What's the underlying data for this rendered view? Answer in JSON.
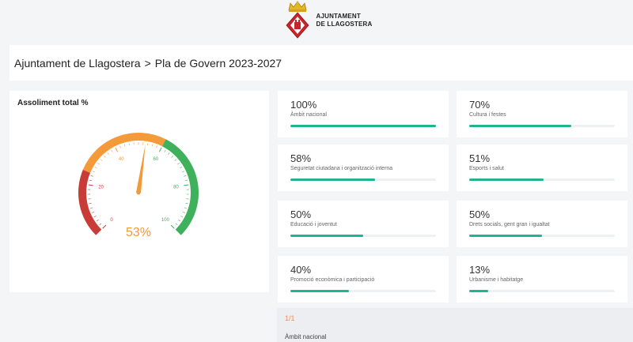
{
  "logo": {
    "line1": "AJUNTAMENT",
    "line2": "DE LLAGOSTERA"
  },
  "breadcrumb": {
    "root": "Ajuntament de Llagostera",
    "separator": ">",
    "current": "Pla de Govern 2023-2027"
  },
  "gauge": {
    "title": "Assoliment total %",
    "value_label": "53%",
    "value": 53,
    "min": 0,
    "max": 100,
    "ticks": [
      "0",
      "20",
      "40",
      "60",
      "80",
      "100"
    ],
    "colors": {
      "low": "#c93b37",
      "mid": "#f39b3a",
      "high": "#3fb15c",
      "needle": "#f29a3a"
    }
  },
  "metrics": [
    {
      "pct": "100%",
      "label": "Àmbit nacional",
      "value": 100
    },
    {
      "pct": "70%",
      "label": "Cultura i festes",
      "value": 70
    },
    {
      "pct": "58%",
      "label": "Seguretat ciutadana i organització interna",
      "value": 58
    },
    {
      "pct": "51%",
      "label": "Esports i salut",
      "value": 51
    },
    {
      "pct": "50%",
      "label": "Educació i joventut",
      "value": 50
    },
    {
      "pct": "50%",
      "label": "Drets socials, gent gran i igualtat",
      "value": 50
    },
    {
      "pct": "40%",
      "label": "Promoció econòmica i participació",
      "value": 40
    },
    {
      "pct": "13%",
      "label": "Urbanisme i habitatge",
      "value": 13
    }
  ],
  "bottom": {
    "pager": "1/1",
    "section_title": "Àmbit nacional"
  },
  "accent": "#1fb591"
}
